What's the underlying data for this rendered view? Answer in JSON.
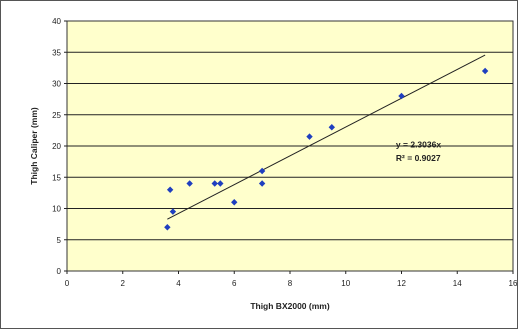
{
  "chart_data": {
    "type": "scatter",
    "xlabel": "Thigh BX2000 (mm)",
    "ylabel": "Thigh Caliper (mm)",
    "xlim": [
      0,
      16
    ],
    "ylim": [
      0,
      40
    ],
    "x_ticks": [
      "0",
      "2",
      "4",
      "6",
      "8",
      "10",
      "12",
      "14",
      "16"
    ],
    "y_ticks": [
      "0",
      "5",
      "10",
      "15",
      "20",
      "25",
      "30",
      "35",
      "40"
    ],
    "grid": "horizontal",
    "plot_background": "#ffffcc",
    "marker_color": "#1f3fbf",
    "trendline_color": "#222222",
    "points": [
      {
        "x": 3.6,
        "y": 7
      },
      {
        "x": 3.7,
        "y": 13
      },
      {
        "x": 3.8,
        "y": 9.5
      },
      {
        "x": 4.4,
        "y": 14
      },
      {
        "x": 5.3,
        "y": 14
      },
      {
        "x": 5.5,
        "y": 14
      },
      {
        "x": 6.0,
        "y": 11
      },
      {
        "x": 7.0,
        "y": 16
      },
      {
        "x": 7.0,
        "y": 14
      },
      {
        "x": 8.7,
        "y": 21.5
      },
      {
        "x": 9.5,
        "y": 23
      },
      {
        "x": 12.0,
        "y": 28
      },
      {
        "x": 15.0,
        "y": 32
      }
    ],
    "trendline": {
      "slope": 2.3036,
      "x_range": [
        3.6,
        15.0
      ],
      "equation_label": "y = 2.3036x",
      "r2_label": "R² = 0.9027"
    }
  }
}
